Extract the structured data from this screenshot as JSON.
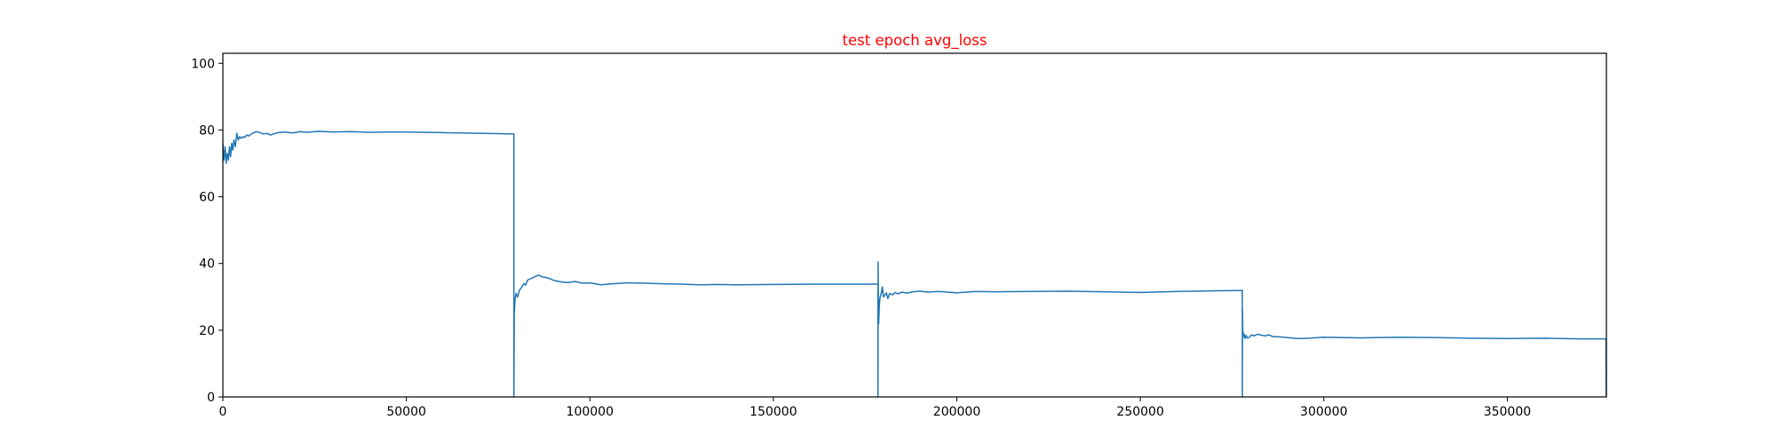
{
  "chart_data": {
    "type": "line",
    "title": "test epoch avg_loss",
    "title_color": "#ff0000",
    "xlabel": "",
    "ylabel": "",
    "xlim": [
      0,
      377000
    ],
    "ylim": [
      0,
      103
    ],
    "grid": false,
    "legend": "none",
    "line_color": "#1f77b4",
    "x_ticks": [
      0,
      50000,
      100000,
      150000,
      200000,
      250000,
      300000,
      350000
    ],
    "x_tick_labels": [
      "0",
      "50000",
      "100000",
      "150000",
      "200000",
      "250000",
      "300000",
      "350000"
    ],
    "y_ticks": [
      0,
      20,
      40,
      60,
      80,
      100
    ],
    "y_tick_labels": [
      "0",
      "20",
      "40",
      "60",
      "80",
      "100"
    ],
    "series": [
      {
        "x": [
          0,
          300,
          600,
          900,
          1200,
          1500,
          1800,
          2100,
          2400,
          2700,
          3000,
          3400,
          3800,
          4200,
          4600,
          5000,
          5500,
          6000,
          6500,
          7000,
          8000,
          9000,
          10000,
          11000,
          12000,
          13000,
          14000,
          15000,
          17000,
          19000,
          21000,
          23000,
          26000,
          30000,
          35000,
          40000,
          45000,
          50000,
          55000,
          60000,
          65000,
          70000,
          75000,
          79300,
          79301,
          79400,
          79600,
          79900,
          80300,
          80800,
          81500,
          82000,
          82500,
          83000,
          84000,
          85000,
          86000,
          87000,
          88000,
          89000,
          90000,
          92000,
          94000,
          96000,
          98000,
          100000,
          103000,
          106000,
          110000,
          115000,
          120000,
          125000,
          130000,
          135000,
          140000,
          150000,
          160000,
          170000,
          178500,
          178501,
          178550,
          178600,
          178700,
          178800,
          178900,
          179100,
          179400,
          179700,
          180000,
          180400,
          180800,
          181200,
          181700,
          182500,
          183200,
          184000,
          185000,
          186500,
          188000,
          190000,
          192000,
          195000,
          200000,
          205000,
          210000,
          220000,
          230000,
          240000,
          250000,
          260000,
          270000,
          277800,
          277801,
          277850,
          277900,
          278000,
          278200,
          278500,
          278800,
          279200,
          279700,
          280300,
          281000,
          282000,
          283000,
          284000,
          285000,
          286000,
          288000,
          290000,
          293000,
          296000,
          300000,
          305000,
          310000,
          320000,
          330000,
          340000,
          350000,
          360000,
          370000,
          376900,
          376950
        ],
        "y": [
          76,
          71,
          75,
          70,
          73,
          71,
          75,
          72,
          76,
          74,
          77,
          75,
          79,
          77,
          78,
          77.5,
          78,
          77.8,
          78.5,
          78.2,
          79,
          79.5,
          79.3,
          78.8,
          79,
          78.5,
          78.9,
          79.2,
          79.4,
          79.1,
          79.5,
          79.3,
          79.6,
          79.4,
          79.5,
          79.3,
          79.4,
          79.4,
          79.3,
          79.2,
          79.1,
          79,
          78.9,
          78.8,
          0,
          25,
          29,
          31,
          30,
          32,
          33,
          34,
          33.5,
          35,
          35.5,
          36,
          36.5,
          36,
          35.8,
          35.5,
          35,
          34.5,
          34.3,
          34.6,
          34.1,
          34.2,
          33.6,
          33.9,
          34.2,
          34.1,
          33.9,
          33.8,
          33.6,
          33.7,
          33.6,
          33.7,
          33.8,
          33.8,
          33.8,
          0,
          40.5,
          30,
          22,
          25,
          28,
          30,
          31,
          33,
          30,
          30.5,
          31.2,
          29.5,
          31,
          30.6,
          31.3,
          30.9,
          31.4,
          31.1,
          31.5,
          31.7,
          31.4,
          31.6,
          31.2,
          31.6,
          31.5,
          31.6,
          31.7,
          31.5,
          31.3,
          31.6,
          31.8,
          31.9,
          0,
          26,
          21,
          18,
          19,
          17.5,
          18.5,
          17.6,
          17.9,
          18.6,
          18.3,
          18.8,
          18.5,
          18.3,
          18.6,
          18.1,
          18,
          17.8,
          17.5,
          17.6,
          17.9,
          17.8,
          17.7,
          17.9,
          17.8,
          17.6,
          17.5,
          17.6,
          17.4,
          17.4,
          0
        ]
      }
    ]
  }
}
